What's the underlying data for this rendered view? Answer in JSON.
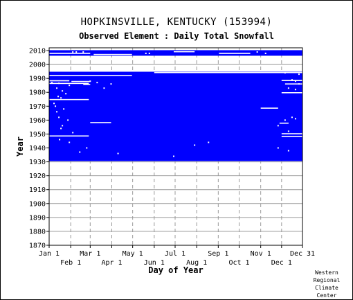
{
  "chart_data": {
    "type": "heatmap",
    "title": "HOPKINSVILLE, KENTUCKY   (153994)",
    "subtitle": "Observed Element : Daily Total Snowfall",
    "xlabel": "Day of Year",
    "ylabel": "Year",
    "x_ticks_top": [
      "Jan 1",
      "Mar 1",
      "May 1",
      "Jul 1",
      "Sep 1",
      "Nov 1",
      "Dec 31"
    ],
    "x_ticks_bottom": [
      "Feb 1",
      "Apr 1",
      "Jun 1",
      "Aug 1",
      "Oct 1",
      "Dec 1"
    ],
    "y_ticks": [
      "2010",
      "2000",
      "1990",
      "1980",
      "1970",
      "1960",
      "1950",
      "1940",
      "1930",
      "1920",
      "1910",
      "1900",
      "1890",
      "1880",
      "1870"
    ],
    "ylim": [
      1870,
      2012
    ],
    "xlim": [
      1,
      365
    ],
    "data_color": "#0000ff",
    "observed_periods": [
      {
        "from_year": 1930.5,
        "to_year": 1994.8
      },
      {
        "from_year": 2006.3,
        "to_year": 2010.3
      }
    ],
    "missing_lines": [
      {
        "year": 1992.0,
        "day_from": 1,
        "day_to": 120
      },
      {
        "year": 1988.3,
        "day_from": 1,
        "day_to": 30
      },
      {
        "year": 1987.8,
        "day_from": 33,
        "day_to": 60
      },
      {
        "year": 1986.4,
        "day_from": 1,
        "day_to": 58
      },
      {
        "year": 1985.6,
        "day_from": 50,
        "day_to": 60
      },
      {
        "year": 1974.8,
        "day_from": 1,
        "day_to": 58
      },
      {
        "year": 1958.2,
        "day_from": 60,
        "day_to": 90
      },
      {
        "year": 1948.6,
        "day_from": 1,
        "day_to": 58
      },
      {
        "year": 1994.2,
        "day_from": 152,
        "day_to": 365
      },
      {
        "year": 1988.5,
        "day_from": 335,
        "day_to": 365
      },
      {
        "year": 1986.0,
        "day_from": 340,
        "day_to": 365
      },
      {
        "year": 1979.7,
        "day_from": 335,
        "day_to": 365
      },
      {
        "year": 1968.6,
        "day_from": 305,
        "day_to": 330
      },
      {
        "year": 1957.8,
        "day_from": 332,
        "day_to": 345
      },
      {
        "year": 1950.2,
        "day_from": 335,
        "day_to": 365
      },
      {
        "year": 1948.2,
        "day_from": 335,
        "day_to": 365
      },
      {
        "year": 2008.0,
        "day_from": 1,
        "day_to": 60
      },
      {
        "year": 2007.2,
        "day_from": 65,
        "day_to": 120
      },
      {
        "year": 2008.0,
        "day_from": 245,
        "day_to": 290
      },
      {
        "year": 2009.2,
        "day_from": 180,
        "day_to": 210
      }
    ],
    "credit": [
      "Western",
      "Regional",
      "Climate",
      "Center"
    ]
  }
}
